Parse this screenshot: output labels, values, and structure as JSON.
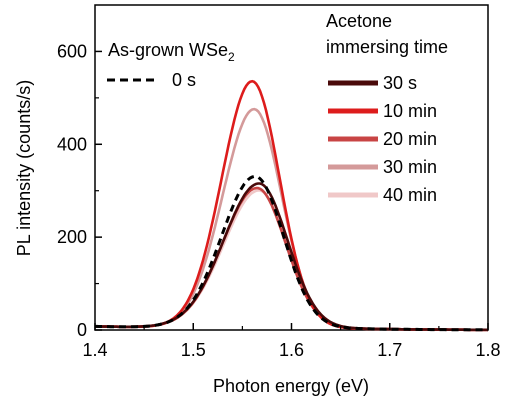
{
  "chart_data": {
    "type": "line",
    "xlabel": "Photon energy (eV)",
    "ylabel": "PL intensity (counts/s)",
    "xlim": [
      1.4,
      1.8
    ],
    "ylim": [
      0,
      700
    ],
    "x_ticks": [
      "1.4",
      "1.5",
      "1.6",
      "1.7",
      "1.8"
    ],
    "y_ticks": [
      "0",
      "200",
      "400",
      "600"
    ],
    "grid": false,
    "annotation": {
      "main": "As-grown WSe",
      "subscript": "2",
      "series_label": "0 s"
    },
    "legend": {
      "title_line1": "Acetone",
      "title_line2": "immersing time",
      "placement": "top-right"
    },
    "series": [
      {
        "name": "0 s",
        "color": "#000000",
        "dashed": true,
        "peak_x": 1.563,
        "peak_y": 325,
        "sigma_low": 0.034,
        "sigma_high": 0.029
      },
      {
        "name": "30 s",
        "color": "#4a0a0a",
        "dashed": false,
        "peak_x": 1.567,
        "peak_y": 310,
        "sigma_low": 0.036,
        "sigma_high": 0.029
      },
      {
        "name": "10 min",
        "color": "#dd1c1c",
        "dashed": false,
        "peak_x": 1.56,
        "peak_y": 530,
        "sigma_low": 0.031,
        "sigma_high": 0.028
      },
      {
        "name": "20 min",
        "color": "#c84444",
        "dashed": false,
        "peak_x": 1.565,
        "peak_y": 300,
        "sigma_low": 0.035,
        "sigma_high": 0.029
      },
      {
        "name": "30 min",
        "color": "#d49a9a",
        "dashed": false,
        "peak_x": 1.562,
        "peak_y": 470,
        "sigma_low": 0.032,
        "sigma_high": 0.028
      },
      {
        "name": "40 min",
        "color": "#f0c8c8",
        "dashed": false,
        "peak_x": 1.567,
        "peak_y": 295,
        "sigma_low": 0.036,
        "sigma_high": 0.029
      }
    ]
  }
}
